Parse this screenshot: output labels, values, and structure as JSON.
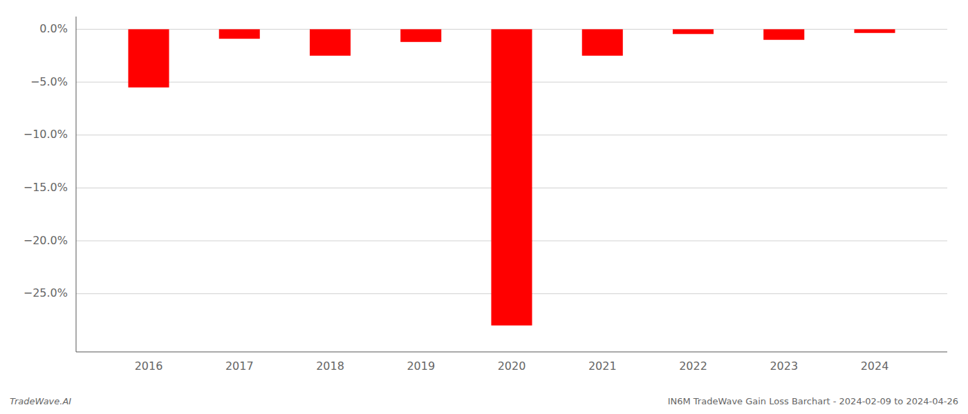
{
  "chart_data": {
    "type": "bar",
    "categories": [
      "2016",
      "2017",
      "2018",
      "2019",
      "2020",
      "2021",
      "2022",
      "2023",
      "2024"
    ],
    "values": [
      -5.5,
      -0.9,
      -2.5,
      -1.2,
      -28.0,
      -2.5,
      -0.45,
      -1.0,
      -0.35
    ],
    "color": "#ff0000",
    "ylim": [
      -30.5,
      1.2
    ],
    "yticks": [
      {
        "value": 0,
        "label": "0.0%"
      },
      {
        "value": -5,
        "label": "−5.0%"
      },
      {
        "value": -10,
        "label": "−10.0%"
      },
      {
        "value": -15,
        "label": "−15.0%"
      },
      {
        "value": -20,
        "label": "−20.0%"
      },
      {
        "value": -25,
        "label": "−25.0%"
      }
    ],
    "grid": true,
    "annotations": [
      "TradeWave.AI",
      "IN6M TradeWave Gain Loss Barchart - 2024-02-09 to 2024-04-26"
    ]
  }
}
